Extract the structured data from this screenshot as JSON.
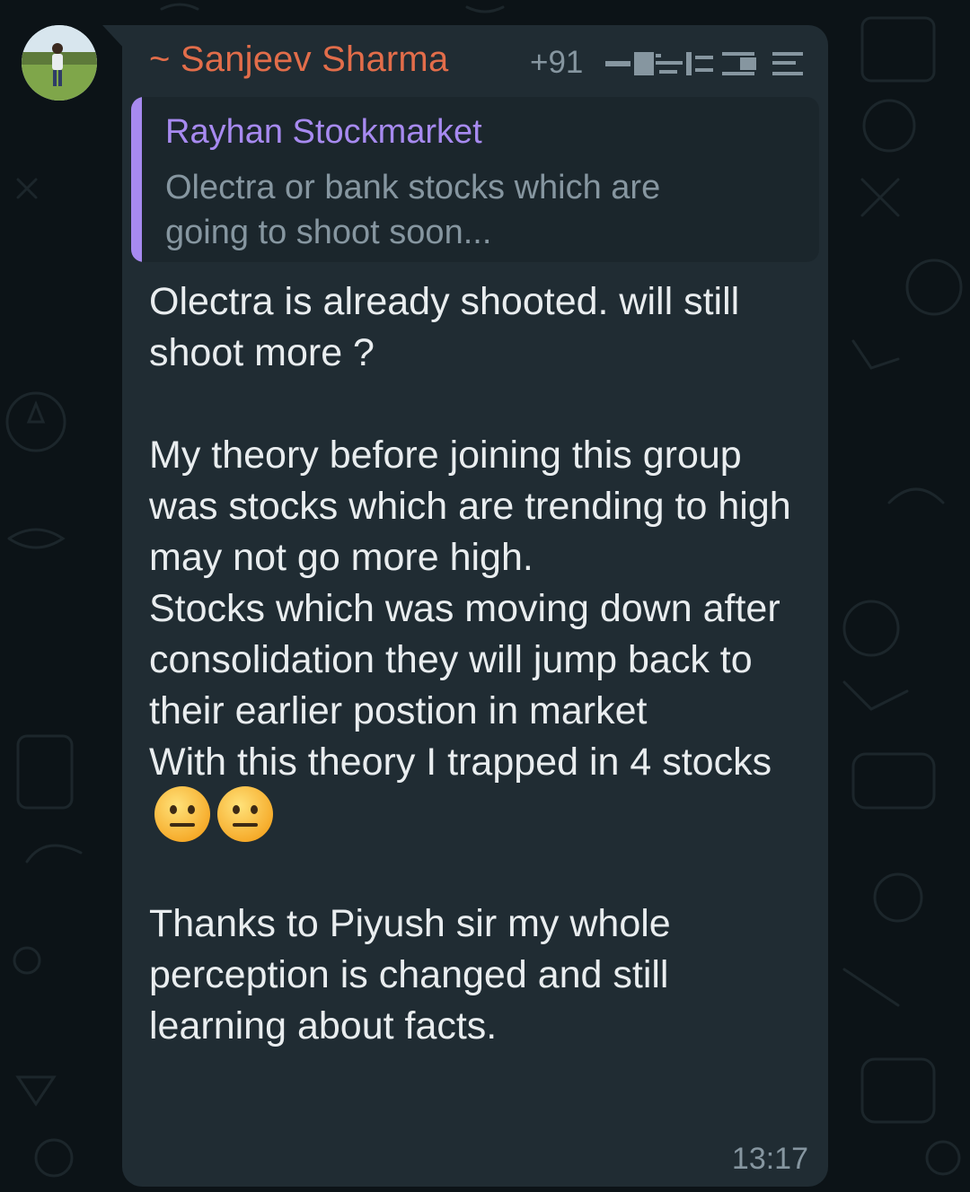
{
  "sender": {
    "name": "~ Sanjeev Sharma",
    "phone_prefix": "+91",
    "name_color": "#e26d4a"
  },
  "quoted_message": {
    "author": "Rayhan Stockmarket",
    "text": "Olectra or bank stocks which are going to shoot  soon...",
    "accent_color": "#a78af0"
  },
  "message": {
    "paragraph_1": "Olectra is already shooted. will still shoot more ?",
    "paragraph_2": "My theory before joining this group was stocks which are trending to high may not go more high.",
    "paragraph_3": "Stocks which was moving down after consolidation they will jump back to their earlier postion in market",
    "paragraph_4": "With this theory I trapped in 4 stocks",
    "paragraph_5": "Thanks to Piyush sir my whole perception is changed and still learning  about facts.",
    "emojis": [
      "neutral-face-emoji",
      "neutral-face-emoji"
    ]
  },
  "timestamp": "13:17",
  "colors": {
    "background": "#0c1317",
    "bubble": "#202c33",
    "quote_background": "#1b262c",
    "text": "#e9edef",
    "meta_text": "#8696a0"
  }
}
